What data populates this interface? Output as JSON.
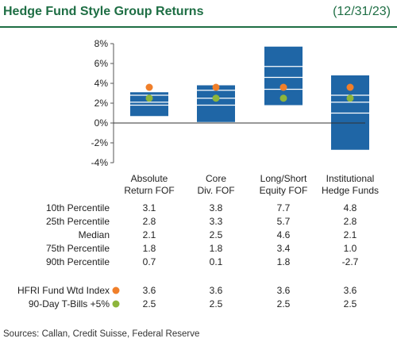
{
  "header": {
    "title": "Hedge Fund Style Group Returns",
    "date": "(12/31/23)"
  },
  "chart_data": {
    "type": "box",
    "ylim": [
      -4,
      8
    ],
    "yticks": [
      -4,
      -2,
      0,
      2,
      4,
      6,
      8
    ],
    "ytick_labels": [
      "-4%",
      "-2%",
      "0%",
      "2%",
      "4%",
      "6%",
      "8%"
    ],
    "categories": [
      [
        "Absolute",
        "Return FOF"
      ],
      [
        "Core",
        "Div. FOF"
      ],
      [
        "Long/Short",
        "Equity FOF"
      ],
      [
        "Institutional",
        "Hedge Funds"
      ]
    ],
    "percentiles": [
      {
        "label": "10th Percentile",
        "values": [
          3.1,
          3.8,
          7.7,
          4.8
        ]
      },
      {
        "label": "25th Percentile",
        "values": [
          2.8,
          3.3,
          5.7,
          2.8
        ]
      },
      {
        "label": "Median",
        "values": [
          2.1,
          2.5,
          4.6,
          2.1
        ]
      },
      {
        "label": "75th Percentile",
        "values": [
          1.8,
          1.8,
          3.4,
          1.0
        ]
      },
      {
        "label": "90th Percentile",
        "values": [
          0.7,
          0.1,
          1.8,
          -2.7
        ]
      }
    ],
    "markers": [
      {
        "label": "HFRI Fund Wtd Index",
        "color": "#f07f2a",
        "values": [
          3.6,
          3.6,
          3.6,
          3.6
        ]
      },
      {
        "label": "90-Day T-Bills +5%",
        "color": "#8db53c",
        "values": [
          2.5,
          2.5,
          2.5,
          2.5
        ]
      }
    ],
    "box_color": "#1f66a6"
  },
  "footer": {
    "source": "Sources: Callan, Credit Suisse, Federal Reserve"
  }
}
